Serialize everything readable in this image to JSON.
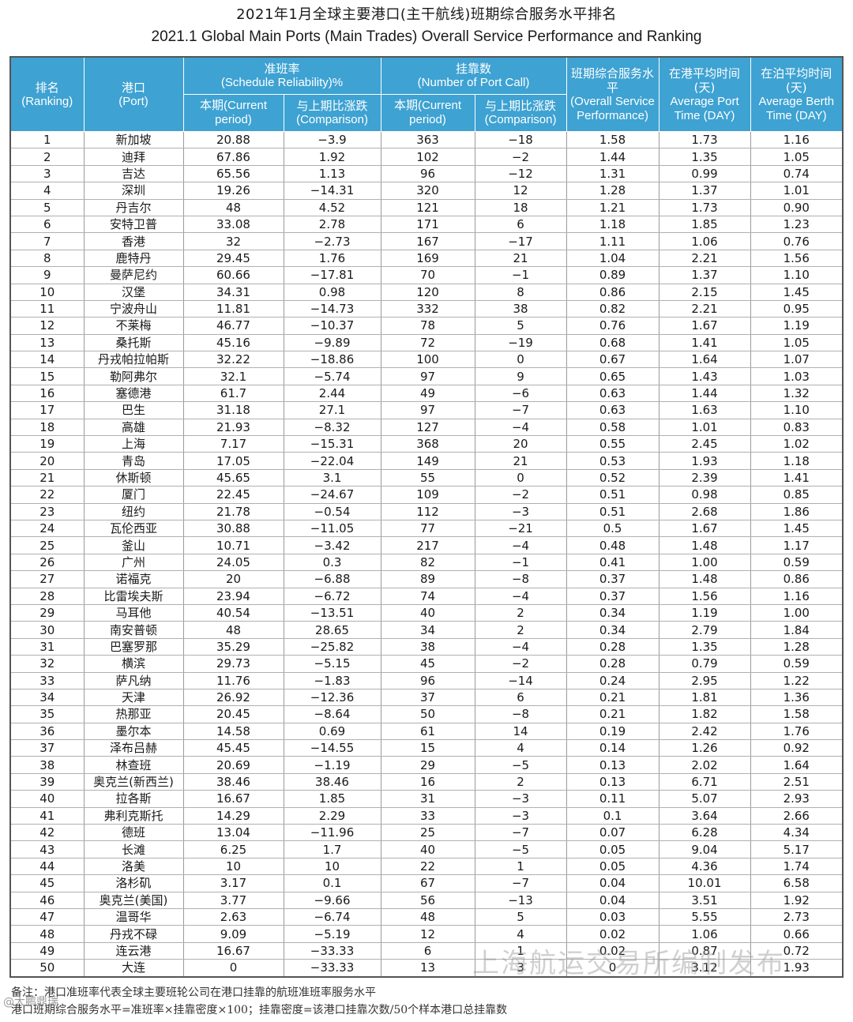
{
  "title_zh": "2021年1月全球主要港口(主干航线)班期综合服务水平排名",
  "title_en": "2021.1 Global Main Ports (Main Trades) Overall Service Performance and Ranking",
  "header": {
    "rank_zh": "排名",
    "rank_en": "(Ranking)",
    "port_zh": "港口",
    "port_en": "(Port)",
    "reliability_zh": "准班率",
    "reliability_en": "(Schedule Reliability)%",
    "portcall_zh": "挂靠数",
    "portcall_en": "(Number of Port Call)",
    "overall_zh": "班期综合服务水平",
    "overall_en": "(Overall Service Performance)",
    "port_time_zh": "在港平均时间(天)",
    "port_time_en": "Average Port Time (DAY)",
    "berth_time_zh": "在泊平均时间(天)",
    "berth_time_en": "Average Berth Time (DAY)",
    "current_zh": "本期",
    "current_en": "(Current period)",
    "comparison_zh": "与上期比涨跌",
    "comparison_en": "(Comparison)"
  },
  "rows": [
    [
      "1",
      "新加坡",
      "20.88",
      "−3.9",
      "363",
      "−18",
      "1.58",
      "1.73",
      "1.16"
    ],
    [
      "2",
      "迪拜",
      "67.86",
      "1.92",
      "102",
      "−2",
      "1.44",
      "1.35",
      "1.05"
    ],
    [
      "3",
      "吉达",
      "65.56",
      "1.13",
      "96",
      "−12",
      "1.31",
      "0.99",
      "0.74"
    ],
    [
      "4",
      "深圳",
      "19.26",
      "−14.31",
      "320",
      "12",
      "1.28",
      "1.37",
      "1.01"
    ],
    [
      "5",
      "丹吉尔",
      "48",
      "4.52",
      "121",
      "18",
      "1.21",
      "1.73",
      "0.90"
    ],
    [
      "6",
      "安特卫普",
      "33.08",
      "2.78",
      "171",
      "6",
      "1.18",
      "1.85",
      "1.23"
    ],
    [
      "7",
      "香港",
      "32",
      "−2.73",
      "167",
      "−17",
      "1.11",
      "1.06",
      "0.76"
    ],
    [
      "8",
      "鹿特丹",
      "29.45",
      "1.76",
      "169",
      "21",
      "1.04",
      "2.21",
      "1.56"
    ],
    [
      "9",
      "曼萨尼约",
      "60.66",
      "−17.81",
      "70",
      "−1",
      "0.89",
      "1.37",
      "1.10"
    ],
    [
      "10",
      "汉堡",
      "34.31",
      "0.98",
      "120",
      "8",
      "0.86",
      "2.15",
      "1.45"
    ],
    [
      "11",
      "宁波舟山",
      "11.81",
      "−14.73",
      "332",
      "38",
      "0.82",
      "2.21",
      "0.95"
    ],
    [
      "12",
      "不莱梅",
      "46.77",
      "−10.37",
      "78",
      "5",
      "0.76",
      "1.67",
      "1.19"
    ],
    [
      "13",
      "桑托斯",
      "45.16",
      "−9.89",
      "72",
      "−19",
      "0.68",
      "1.41",
      "1.05"
    ],
    [
      "14",
      "丹戎帕拉帕斯",
      "32.22",
      "−18.86",
      "100",
      "0",
      "0.67",
      "1.64",
      "1.07"
    ],
    [
      "15",
      "勒阿弗尔",
      "32.1",
      "−5.74",
      "97",
      "9",
      "0.65",
      "1.43",
      "1.03"
    ],
    [
      "16",
      "塞德港",
      "61.7",
      "2.44",
      "49",
      "−6",
      "0.63",
      "1.44",
      "1.32"
    ],
    [
      "17",
      "巴生",
      "31.18",
      "27.1",
      "97",
      "−7",
      "0.63",
      "1.63",
      "1.10"
    ],
    [
      "18",
      "高雄",
      "21.93",
      "−8.32",
      "127",
      "−4",
      "0.58",
      "1.01",
      "0.83"
    ],
    [
      "19",
      "上海",
      "7.17",
      "−15.31",
      "368",
      "20",
      "0.55",
      "2.45",
      "1.02"
    ],
    [
      "20",
      "青岛",
      "17.05",
      "−22.04",
      "149",
      "21",
      "0.53",
      "1.93",
      "1.18"
    ],
    [
      "21",
      "休斯顿",
      "45.65",
      "3.1",
      "55",
      "0",
      "0.52",
      "2.39",
      "1.41"
    ],
    [
      "22",
      "厦门",
      "22.45",
      "−24.67",
      "109",
      "−2",
      "0.51",
      "0.98",
      "0.85"
    ],
    [
      "23",
      "纽约",
      "21.78",
      "−0.54",
      "112",
      "−3",
      "0.51",
      "2.68",
      "1.86"
    ],
    [
      "24",
      "瓦伦西亚",
      "30.88",
      "−11.05",
      "77",
      "−21",
      "0.5",
      "1.67",
      "1.45"
    ],
    [
      "25",
      "釜山",
      "10.71",
      "−3.42",
      "217",
      "−4",
      "0.48",
      "1.48",
      "1.17"
    ],
    [
      "26",
      "广州",
      "24.05",
      "0.3",
      "82",
      "−1",
      "0.41",
      "1.00",
      "0.59"
    ],
    [
      "27",
      "诺福克",
      "20",
      "−6.88",
      "89",
      "−8",
      "0.37",
      "1.48",
      "0.86"
    ],
    [
      "28",
      "比雷埃夫斯",
      "23.94",
      "−6.72",
      "74",
      "−4",
      "0.37",
      "1.56",
      "1.16"
    ],
    [
      "29",
      "马耳他",
      "40.54",
      "−13.51",
      "40",
      "2",
      "0.34",
      "1.19",
      "1.00"
    ],
    [
      "30",
      "南安普顿",
      "48",
      "28.65",
      "34",
      "2",
      "0.34",
      "2.79",
      "1.84"
    ],
    [
      "31",
      "巴塞罗那",
      "35.29",
      "−25.82",
      "38",
      "−4",
      "0.28",
      "1.35",
      "1.28"
    ],
    [
      "32",
      "横滨",
      "29.73",
      "−5.15",
      "45",
      "−2",
      "0.28",
      "0.79",
      "0.59"
    ],
    [
      "33",
      "萨凡纳",
      "11.76",
      "−1.83",
      "96",
      "−14",
      "0.24",
      "2.95",
      "1.22"
    ],
    [
      "34",
      "天津",
      "26.92",
      "−12.36",
      "37",
      "6",
      "0.21",
      "1.81",
      "1.36"
    ],
    [
      "35",
      "热那亚",
      "20.45",
      "−8.64",
      "50",
      "−8",
      "0.21",
      "1.82",
      "1.58"
    ],
    [
      "36",
      "墨尔本",
      "14.58",
      "0.69",
      "61",
      "14",
      "0.19",
      "2.42",
      "1.76"
    ],
    [
      "37",
      "泽布吕赫",
      "45.45",
      "−14.55",
      "15",
      "4",
      "0.14",
      "1.26",
      "0.92"
    ],
    [
      "38",
      "林查班",
      "20.69",
      "−1.19",
      "29",
      "−5",
      "0.13",
      "2.02",
      "1.64"
    ],
    [
      "39",
      "奥克兰(新西兰)",
      "38.46",
      "38.46",
      "16",
      "2",
      "0.13",
      "6.71",
      "2.51"
    ],
    [
      "40",
      "拉各斯",
      "16.67",
      "1.85",
      "31",
      "−3",
      "0.11",
      "5.07",
      "2.93"
    ],
    [
      "41",
      "弗利克斯托",
      "14.29",
      "2.29",
      "33",
      "−3",
      "0.1",
      "3.64",
      "2.66"
    ],
    [
      "42",
      "德班",
      "13.04",
      "−11.96",
      "25",
      "−7",
      "0.07",
      "6.28",
      "4.34"
    ],
    [
      "43",
      "长滩",
      "6.25",
      "1.7",
      "40",
      "−5",
      "0.05",
      "9.04",
      "5.17"
    ],
    [
      "44",
      "洛美",
      "10",
      "10",
      "22",
      "1",
      "0.05",
      "4.36",
      "1.74"
    ],
    [
      "45",
      "洛杉矶",
      "3.17",
      "0.1",
      "67",
      "−7",
      "0.04",
      "10.01",
      "6.58"
    ],
    [
      "46",
      "奥克兰(美国)",
      "3.77",
      "−9.66",
      "56",
      "−13",
      "0.04",
      "3.51",
      "1.92"
    ],
    [
      "47",
      "温哥华",
      "2.63",
      "−6.74",
      "48",
      "5",
      "0.03",
      "5.55",
      "2.73"
    ],
    [
      "48",
      "丹戎不碌",
      "9.09",
      "−5.19",
      "12",
      "4",
      "0.02",
      "1.06",
      "0.66"
    ],
    [
      "49",
      "连云港",
      "16.67",
      "−33.33",
      "6",
      "1",
      "0.02",
      "0.87",
      "0.72"
    ],
    [
      "50",
      "大连",
      "0",
      "−33.33",
      "13",
      "3",
      "0",
      "3.12",
      "1.93"
    ]
  ],
  "watermark": "上海航运交易所编制发布",
  "notes": {
    "line1": "备注：港口准班率代表全球主要班轮公司在港口挂靠的航班准班率服务水平",
    "line2": "港口班期综合服务水平=准班率×挂靠密度×100；挂靠密度=该港口挂靠次数/50个样本港口总挂靠数"
  },
  "source_mark": "@大鹏鼎瑞"
}
